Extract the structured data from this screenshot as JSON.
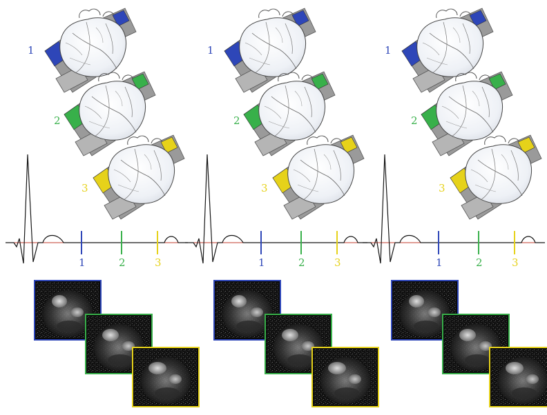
{
  "colors": {
    "phase1": "#2e46b8",
    "phase2": "#38b04a",
    "phase3": "#e6d21a",
    "ecg_trace": "#141414",
    "ecg_baseline": "#c0392b",
    "slab": "#9a9a9a",
    "mri_bg": "#050505"
  },
  "phase_labels": [
    "1",
    "2",
    "3"
  ],
  "panels": [
    {
      "id": "panel-1",
      "hearts": [
        "1",
        "2",
        "3"
      ],
      "ecg_markers": [
        "1",
        "2",
        "3"
      ],
      "mri_images": [
        "1",
        "2",
        "3"
      ]
    },
    {
      "id": "panel-2",
      "hearts": [
        "1",
        "2",
        "3"
      ],
      "ecg_markers": [
        "1",
        "2",
        "3"
      ],
      "mri_images": [
        "1",
        "2",
        "3"
      ]
    },
    {
      "id": "panel-3",
      "hearts": [
        "1",
        "2",
        "3"
      ],
      "ecg_markers": [
        "1",
        "2",
        "3"
      ],
      "mri_images": [
        "1",
        "2",
        "3"
      ]
    }
  ]
}
